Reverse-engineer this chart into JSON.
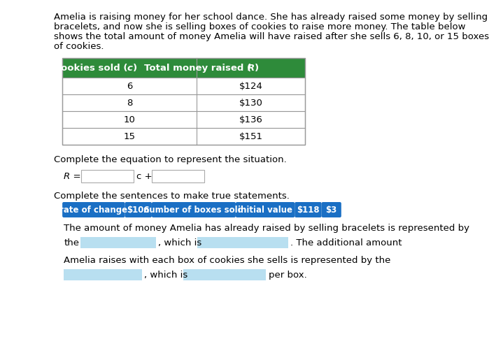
{
  "title_lines": [
    "Amelia is raising money for her school dance. She has already raised some money by selling",
    "bracelets, and now she is selling boxes of cookies to raise more money. The table below",
    "shows the total amount of money Amelia will have raised after she sells 6, 8, 10, or 15 boxes",
    "of cookies."
  ],
  "table_header": [
    "Boxes of cookies sold (c)",
    "Total money raised (R)"
  ],
  "table_rows": [
    [
      "6",
      "$124"
    ],
    [
      "8",
      "$130"
    ],
    [
      "10",
      "$136"
    ],
    [
      "15",
      "$151"
    ]
  ],
  "header_bg": "#2e8b3a",
  "header_text_color": "#ffffff",
  "table_border_color": "#999999",
  "section1_label": "Complete the equation to represent the situation.",
  "section2_label": "Complete the sentences to make true statements.",
  "chips": [
    {
      "text": "rate of change",
      "bg": "#1a6fc4",
      "fg": "#ffffff"
    },
    {
      "text": "$106",
      "bg": "#1a6fc4",
      "fg": "#ffffff"
    },
    {
      "text": "number of boxes sold",
      "bg": "#1a6fc4",
      "fg": "#ffffff"
    },
    {
      "text": "initial value",
      "bg": "#1a6fc4",
      "fg": "#ffffff"
    },
    {
      "text": "$118",
      "bg": "#1a6fc4",
      "fg": "#ffffff"
    },
    {
      "text": "$3",
      "bg": "#1a6fc4",
      "fg": "#ffffff"
    }
  ],
  "sentence1": "The amount of money Amelia has already raised by selling bracelets is represented by",
  "sentence3": "Amelia raises with each box of cookies she sells is represented by the",
  "blank_fill_color": "#b8dff0",
  "input_box_border": "#aaaaaa",
  "bg_color": "#ffffff",
  "font_size_body": 9.5,
  "font_size_chip": 8.5
}
